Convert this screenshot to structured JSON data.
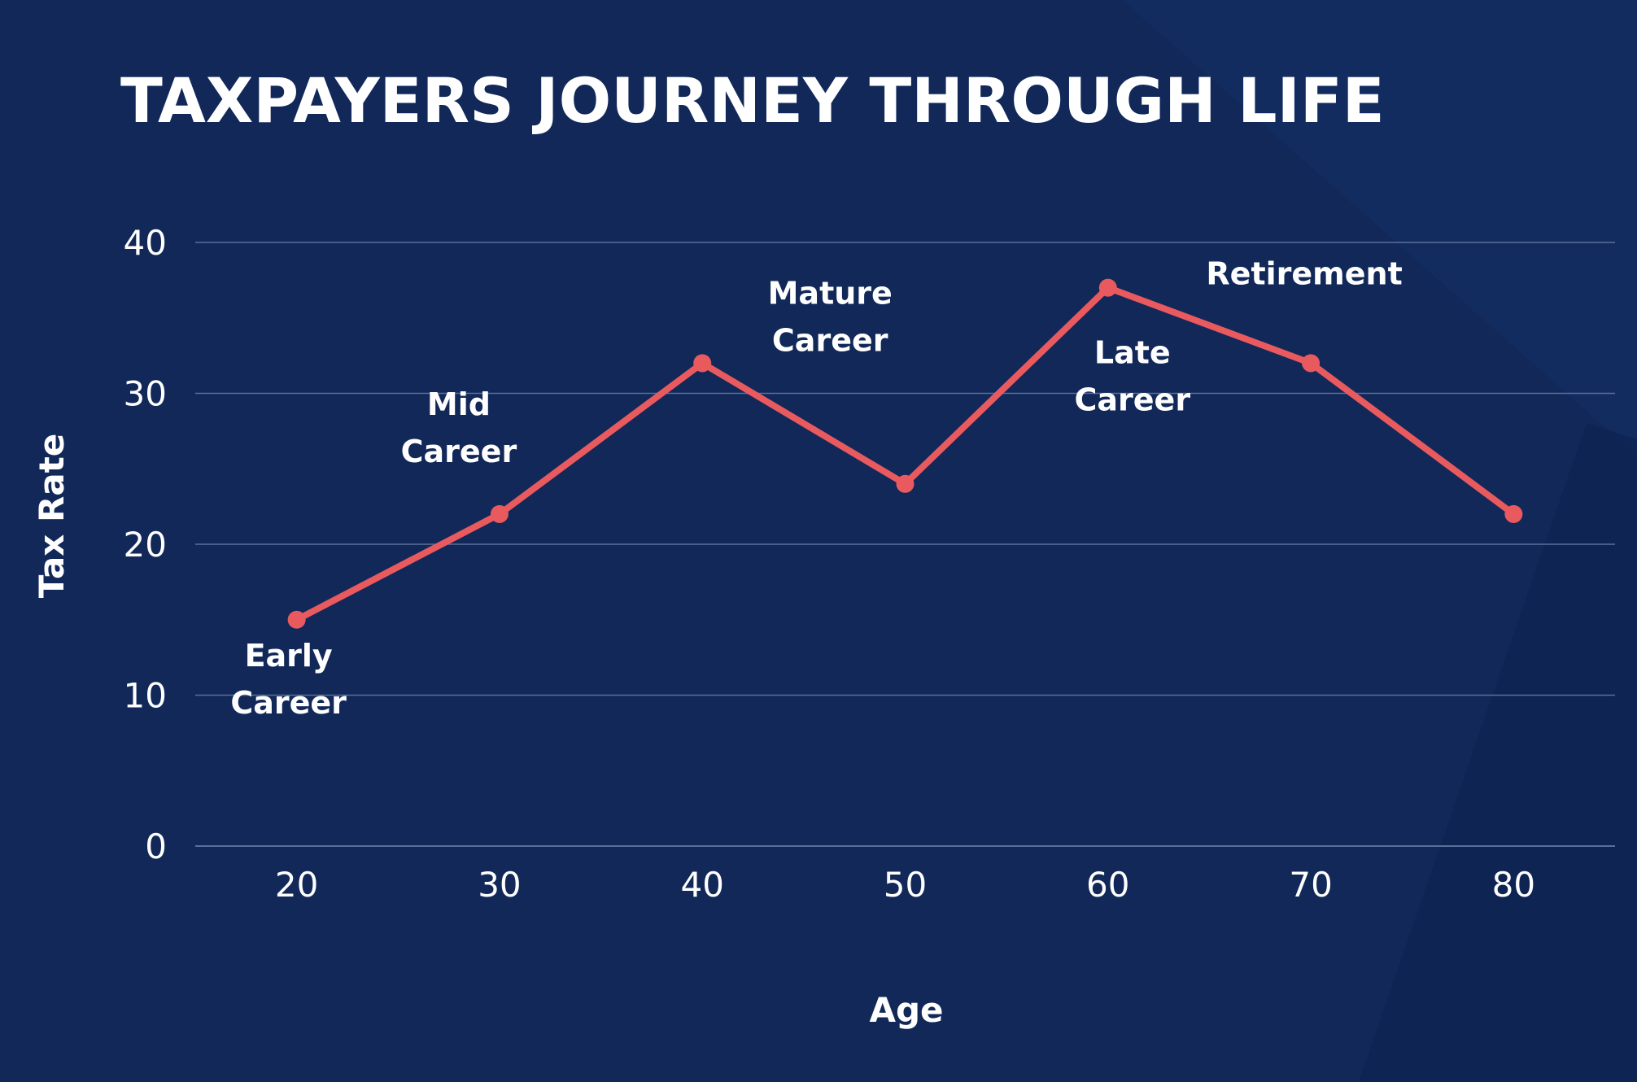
{
  "chart_data": {
    "type": "line",
    "title": "TAXPAYERS JOURNEY THROUGH LIFE",
    "xlabel": "Age",
    "ylabel": "Tax Rate",
    "x": [
      20,
      30,
      40,
      50,
      60,
      70,
      80
    ],
    "series": [
      {
        "values": [
          15,
          22,
          32,
          24,
          37,
          32,
          22
        ]
      }
    ],
    "ylim": [
      0,
      40
    ],
    "yticks": [
      "0",
      "10",
      "20",
      "30",
      "40"
    ],
    "xticks": [
      "20",
      "30",
      "40",
      "50",
      "60",
      "70",
      "80"
    ],
    "grid": true,
    "annotations": [
      {
        "lines": [
          "Early",
          "Career"
        ],
        "x": 20,
        "y": 15
      },
      {
        "lines": [
          "Mid",
          "Career"
        ],
        "x": 30,
        "y": 22
      },
      {
        "lines": [
          "Mature",
          "Career"
        ],
        "x": 40,
        "y": 32
      },
      {
        "lines": [
          "Late",
          "Career"
        ],
        "x": 60,
        "y": 37
      },
      {
        "lines": [
          "Retirement"
        ],
        "x": 70,
        "y": 32
      }
    ],
    "colors": {
      "background": "#112859",
      "line": "#e95a5f",
      "grid": "#5a6f99",
      "text": "#ffffff"
    }
  }
}
